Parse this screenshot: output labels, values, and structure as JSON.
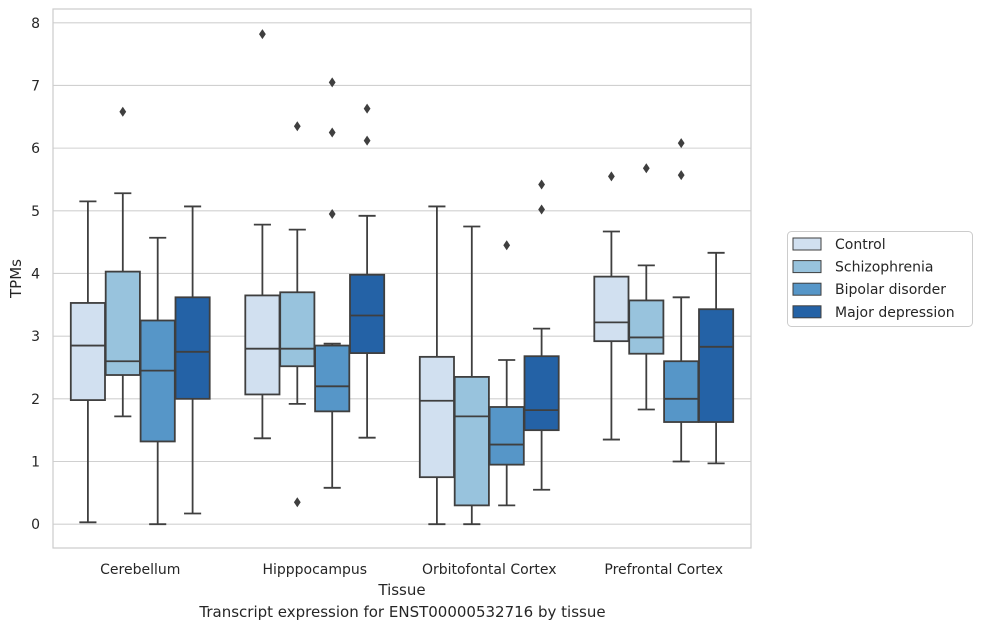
{
  "caption": "Transcript expression for ENST00000532716 by tissue",
  "chart_data": {
    "type": "box",
    "title": "",
    "xlabel": "Tissue",
    "ylabel": "TPMs",
    "ylim": [
      -0.38,
      8.22
    ],
    "yticks": [
      0,
      1,
      2,
      3,
      4,
      5,
      6,
      7,
      8
    ],
    "grid": "horizontal",
    "legend_position": "right",
    "categories": [
      "Cerebellum",
      "Hipppocampus",
      "Orbitofontal Cortex",
      "Prefrontal Cortex"
    ],
    "colors": [
      "#d1e0f0",
      "#98c3dd",
      "#5696c8",
      "#2462a6"
    ],
    "series": [
      {
        "name": "Control",
        "boxes": [
          {
            "whisker_low": 0.03,
            "q1": 1.98,
            "median": 2.85,
            "q3": 3.53,
            "whisker_high": 5.15,
            "outliers": []
          },
          {
            "whisker_low": 1.37,
            "q1": 2.07,
            "median": 2.8,
            "q3": 3.65,
            "whisker_high": 4.78,
            "outliers": [
              7.82
            ]
          },
          {
            "whisker_low": 0.0,
            "q1": 0.75,
            "median": 1.97,
            "q3": 2.67,
            "whisker_high": 5.07,
            "outliers": []
          },
          {
            "whisker_low": 1.35,
            "q1": 2.92,
            "median": 3.22,
            "q3": 3.95,
            "whisker_high": 4.67,
            "outliers": [
              5.55
            ]
          }
        ]
      },
      {
        "name": "Schizophrenia",
        "boxes": [
          {
            "whisker_low": 1.72,
            "q1": 2.38,
            "median": 2.6,
            "q3": 4.03,
            "whisker_high": 5.28,
            "outliers": [
              6.58
            ]
          },
          {
            "whisker_low": 1.92,
            "q1": 2.52,
            "median": 2.8,
            "q3": 3.7,
            "whisker_high": 4.7,
            "outliers": [
              6.35,
              0.35
            ]
          },
          {
            "whisker_low": 0.0,
            "q1": 0.3,
            "median": 1.72,
            "q3": 2.35,
            "whisker_high": 4.75,
            "outliers": []
          },
          {
            "whisker_low": 1.83,
            "q1": 2.72,
            "median": 2.98,
            "q3": 3.57,
            "whisker_high": 4.13,
            "outliers": [
              5.68
            ]
          }
        ]
      },
      {
        "name": "Bipolar disorder",
        "boxes": [
          {
            "whisker_low": 0.0,
            "q1": 1.32,
            "median": 2.45,
            "q3": 3.25,
            "whisker_high": 4.57,
            "outliers": []
          },
          {
            "whisker_low": 0.58,
            "q1": 1.8,
            "median": 2.2,
            "q3": 2.85,
            "whisker_high": 2.88,
            "outliers": [
              7.05,
              6.25,
              4.95
            ]
          },
          {
            "whisker_low": 0.3,
            "q1": 0.95,
            "median": 1.27,
            "q3": 1.87,
            "whisker_high": 2.62,
            "outliers": [
              4.45
            ]
          },
          {
            "whisker_low": 1.0,
            "q1": 1.63,
            "median": 2.0,
            "q3": 2.6,
            "whisker_high": 3.62,
            "outliers": [
              6.08,
              5.57
            ]
          }
        ]
      },
      {
        "name": "Major depression",
        "boxes": [
          {
            "whisker_low": 0.17,
            "q1": 2.0,
            "median": 2.75,
            "q3": 3.62,
            "whisker_high": 5.07,
            "outliers": []
          },
          {
            "whisker_low": 1.38,
            "q1": 2.73,
            "median": 3.33,
            "q3": 3.98,
            "whisker_high": 4.92,
            "outliers": [
              6.63,
              6.12
            ]
          },
          {
            "whisker_low": 0.55,
            "q1": 1.5,
            "median": 1.82,
            "q3": 2.68,
            "whisker_high": 3.12,
            "outliers": [
              5.42,
              5.02
            ]
          },
          {
            "whisker_low": 0.97,
            "q1": 1.63,
            "median": 2.83,
            "q3": 3.43,
            "whisker_high": 4.33,
            "outliers": []
          }
        ]
      }
    ]
  }
}
